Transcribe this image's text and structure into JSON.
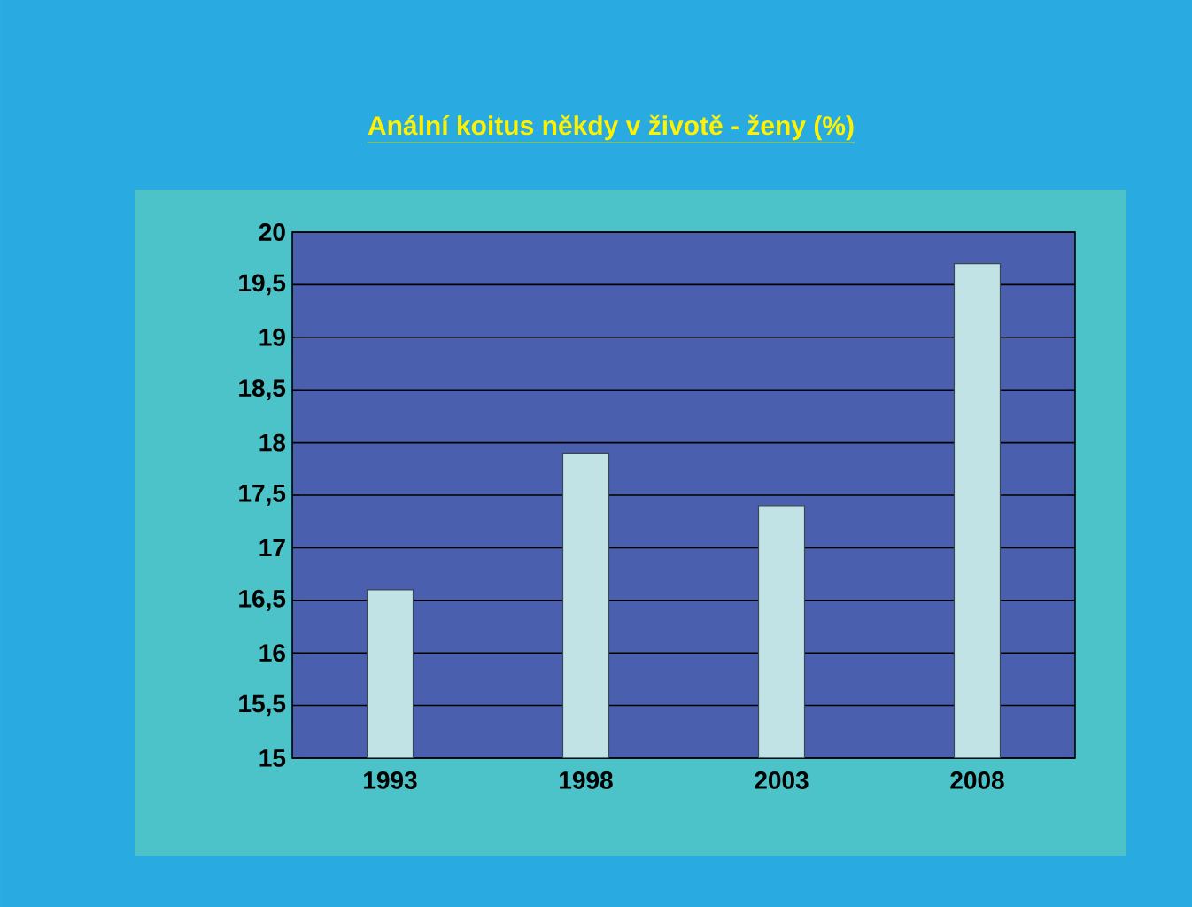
{
  "chart_data": {
    "type": "bar",
    "title": "Anální koitus někdy v životě  -  ženy (%)",
    "categories": [
      "1993",
      "1998",
      "2003",
      "2008"
    ],
    "values": [
      16.6,
      17.9,
      17.4,
      19.7
    ],
    "color": "#c2e3e6",
    "ylim": [
      15,
      20
    ],
    "yticks": [
      15,
      {
        "value": 15.5,
        "label": "15,5"
      },
      16,
      {
        "value": 16.5,
        "label": "16,5"
      },
      17,
      {
        "value": 17.5,
        "label": "17,5"
      },
      18,
      {
        "value": 18.5,
        "label": "18,5"
      },
      19,
      {
        "value": 19.5,
        "label": "19,5"
      },
      20
    ],
    "grid": "y"
  }
}
